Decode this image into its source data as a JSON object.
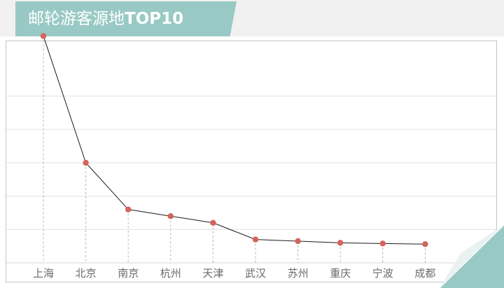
{
  "header": {
    "title_cn": "邮轮游客源地",
    "title_latin": "TOP10"
  },
  "colors": {
    "accent": "#99c9c5",
    "marker": "#d4645c",
    "line": "#1a1a1a",
    "grid": "#e0e0e0",
    "dropline": "#b5b5b5"
  },
  "chart_data": {
    "type": "line",
    "title": "邮轮游客源地TOP10",
    "xlabel": "",
    "ylabel": "",
    "ylim": [
      0,
      7
    ],
    "grid": true,
    "categories": [
      "上海",
      "北京",
      "南京",
      "杭州",
      "天津",
      "武汉",
      "苏州",
      "重庆",
      "宁波",
      "成都"
    ],
    "series": [
      {
        "values": [
          6.8,
          3.0,
          1.6,
          1.4,
          1.2,
          0.7,
          0.65,
          0.6,
          0.58,
          0.56
        ]
      }
    ]
  }
}
